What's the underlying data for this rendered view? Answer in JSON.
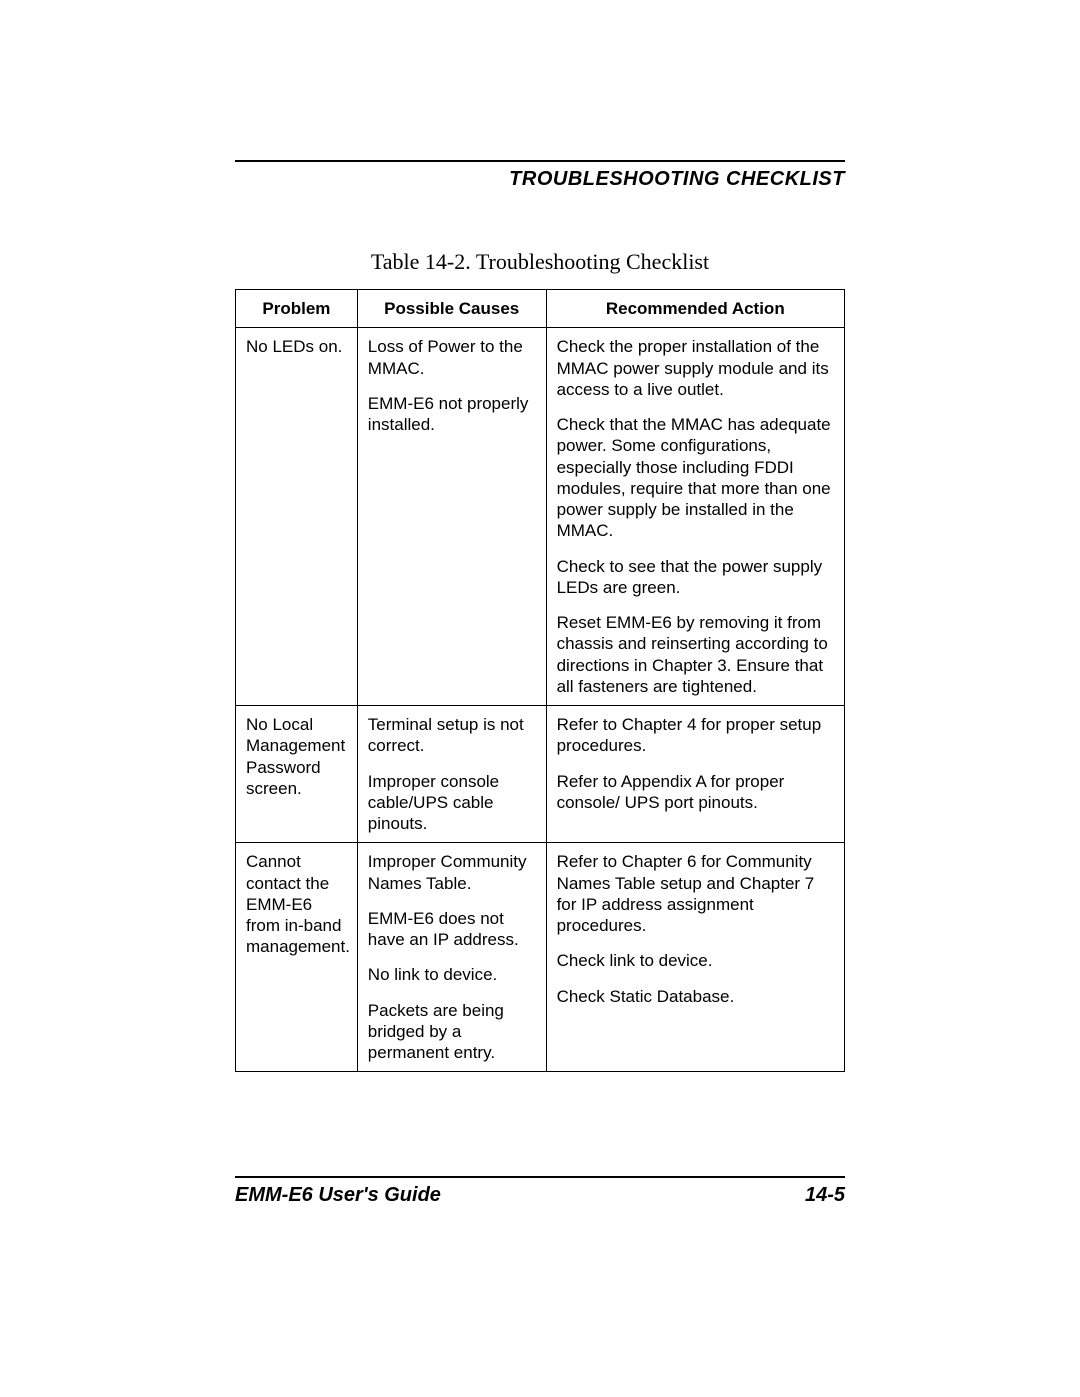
{
  "header": {
    "section_title": "TROUBLESHOOTING CHECKLIST"
  },
  "table": {
    "caption": "Table 14-2.  Troubleshooting Checklist",
    "columns": {
      "problem": "Problem",
      "causes": "Possible Causes",
      "action": "Recommended Action"
    },
    "col_widths": {
      "problem": "20%",
      "causes": "31%",
      "action": "49%"
    },
    "border_color": "#000000",
    "header_fontsize": 17,
    "cell_fontsize": 17,
    "rows": [
      {
        "problem": "No LEDs on.",
        "causes": [
          "Loss of Power to the MMAC.",
          "EMM-E6 not properly installed."
        ],
        "action": [
          "Check the proper installation of the MMAC power supply module and its access to a live outlet.",
          "Check that the MMAC has adequate power. Some configurations, especially those including FDDI modules, require that more than one power supply be installed in the MMAC.",
          "Check to see that the power supply LEDs are green.",
          "Reset EMM-E6 by removing it from chassis and reinserting according to directions in Chapter 3. Ensure that all fasteners are tightened."
        ]
      },
      {
        "problem": "No Local Management Password screen.",
        "causes": [
          "Terminal setup is not correct.",
          "Improper console cable/UPS cable pinouts."
        ],
        "action": [
          "Refer to Chapter 4 for proper setup procedures.",
          "Refer to Appendix A for proper console/ UPS port pinouts."
        ]
      },
      {
        "problem": "Cannot contact the EMM-E6 from in-band management.",
        "causes": [
          "Improper Community Names Table.",
          "EMM-E6 does not have an IP address.",
          "No link to device.",
          "Packets are being bridged by a permanent entry."
        ],
        "action": [
          "Refer to Chapter 6 for Community Names Table setup and Chapter 7 for IP address assignment procedures.",
          "Check link to device.",
          "Check Static Database."
        ]
      }
    ]
  },
  "footer": {
    "left": "EMM-E6 User's Guide",
    "right": "14-5"
  },
  "colors": {
    "background": "#ffffff",
    "text": "#000000",
    "rule": "#000000"
  },
  "typography": {
    "section_title_fontsize": 20,
    "caption_fontsize": 22,
    "footer_fontsize": 20
  }
}
